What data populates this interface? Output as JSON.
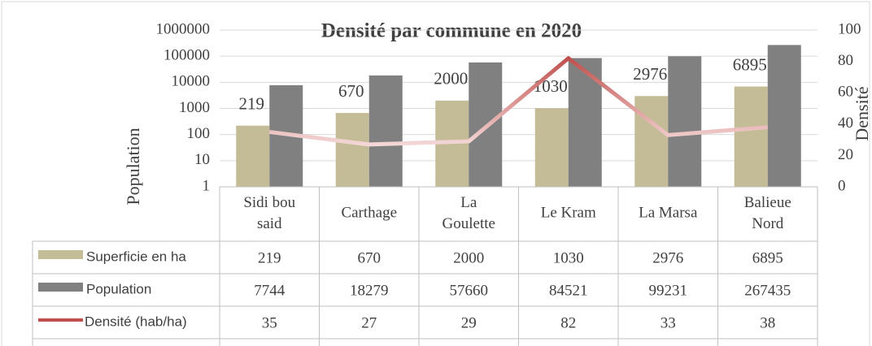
{
  "chart_data": {
    "type": "bar",
    "title": "Densité par commune en 2020",
    "y_label": "Population",
    "y2_label": "Densité",
    "categories": [
      "Sidi bou said",
      "Carthage",
      "La Goulette",
      "Le Kram",
      "La Marsa",
      "Balieue Nord"
    ],
    "series": [
      {
        "name": "Superficie en ha",
        "color": "#c4bc96",
        "type": "bar",
        "values": [
          219,
          670,
          2000,
          1030,
          2976,
          6895
        ]
      },
      {
        "name": "Population",
        "color": "#808080",
        "type": "bar",
        "values": [
          7744,
          18279,
          57660,
          84521,
          99231,
          267435
        ]
      },
      {
        "name": "Densité (hab/ha)",
        "color": "#c0504d",
        "type": "line",
        "axis": "y2",
        "values": [
          35,
          27,
          29,
          82,
          33,
          38
        ]
      }
    ],
    "ylim": [
      1,
      1000000
    ],
    "yticks": [
      1,
      10,
      100,
      1000,
      10000,
      100000,
      1000000
    ],
    "log_scale": true,
    "y2lim": [
      0,
      100
    ],
    "y2ticks": [
      0,
      20,
      40,
      60,
      80,
      100
    ],
    "grid": true,
    "data_labels_series": 0
  }
}
